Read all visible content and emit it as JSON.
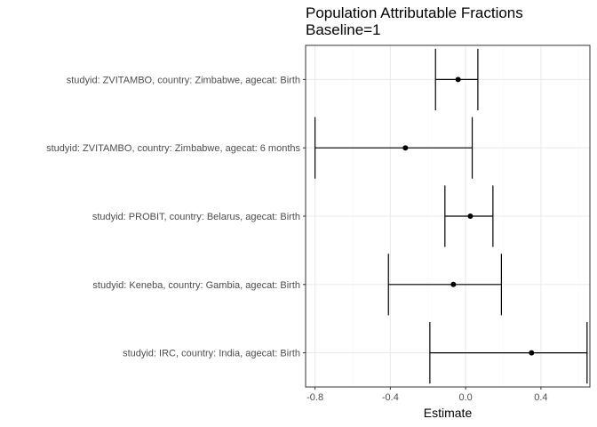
{
  "chart_data": {
    "type": "forest",
    "title": "Population Attributable Fractions",
    "subtitle": "Baseline=1",
    "xlabel": "Estimate",
    "ylabel": "",
    "xlim": [
      -0.85,
      0.66
    ],
    "x_ticks": [
      -0.8,
      -0.4,
      0.0,
      0.4
    ],
    "x_tick_labels": [
      "-0.8",
      "-0.4",
      "0.0",
      "0.4"
    ],
    "grid": true,
    "legend": "none",
    "rows": [
      {
        "label": "studyid: ZVITAMBO, country: Zimbabwe, agecat: Birth",
        "estimate": -0.04,
        "lower": -0.16,
        "upper": 0.065
      },
      {
        "label": "studyid: ZVITAMBO, country: Zimbabwe, agecat: 6 months",
        "estimate": -0.32,
        "lower": -0.8,
        "upper": 0.035
      },
      {
        "label": "studyid: PROBIT, country: Belarus, agecat: Birth",
        "estimate": 0.025,
        "lower": -0.11,
        "upper": 0.145
      },
      {
        "label": "studyid: Keneba, country: Gambia, agecat: Birth",
        "estimate": -0.065,
        "lower": -0.41,
        "upper": 0.19
      },
      {
        "label": "studyid: IRC, country: India, agecat: Birth",
        "estimate": 0.35,
        "lower": -0.19,
        "upper": 0.645
      }
    ],
    "colors": {
      "point": "#000000",
      "errorbar": "#000000",
      "grid_major": "#ebebeb",
      "grid_minor": "#f5f5f5",
      "panel_border": "#333333",
      "tick_text": "#4d4d4d"
    }
  }
}
